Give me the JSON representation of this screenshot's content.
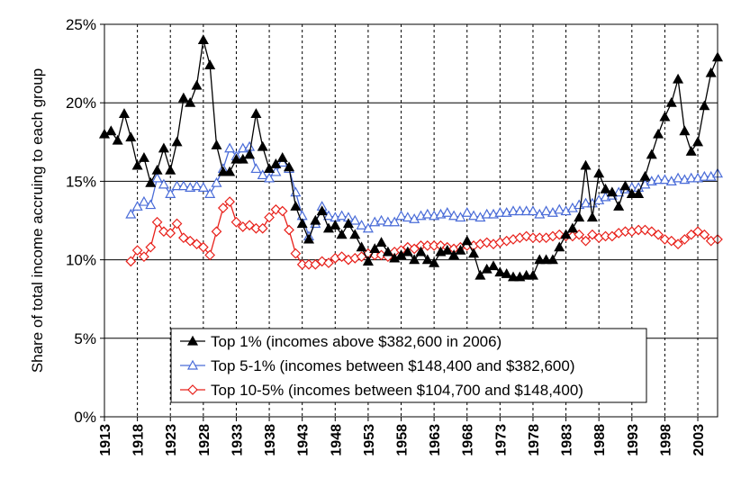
{
  "chart_data": {
    "type": "line",
    "title": "",
    "xlabel": "",
    "ylabel": "Share of total income accruing to each group",
    "xlim": [
      1913,
      2006
    ],
    "ylim": [
      0,
      25
    ],
    "y_ticks": [
      "0%",
      "5%",
      "10%",
      "15%",
      "20%",
      "25%"
    ],
    "y_tick_values": [
      0,
      5,
      10,
      15,
      20,
      25
    ],
    "x_tick_values": [
      1913,
      1918,
      1923,
      1928,
      1933,
      1938,
      1943,
      1948,
      1953,
      1958,
      1963,
      1968,
      1973,
      1978,
      1983,
      1988,
      1993,
      1998,
      2003
    ],
    "x_ticks": [
      "1913",
      "1918",
      "1923",
      "1928",
      "1933",
      "1938",
      "1943",
      "1948",
      "1953",
      "1958",
      "1963",
      "1968",
      "1973",
      "1978",
      "1983",
      "1988",
      "1993",
      "1998",
      "2003"
    ],
    "grid": "horizontal solid, vertical dashed",
    "legend_position": "bottom-center",
    "series": [
      {
        "name": "Top 1% (incomes above $382,600 in 2006)",
        "color": "#000000",
        "marker": "filled-triangle",
        "x": [
          1913,
          1914,
          1915,
          1916,
          1917,
          1918,
          1919,
          1920,
          1921,
          1922,
          1923,
          1924,
          1925,
          1926,
          1927,
          1928,
          1929,
          1930,
          1931,
          1932,
          1933,
          1934,
          1935,
          1936,
          1937,
          1938,
          1939,
          1940,
          1941,
          1942,
          1943,
          1944,
          1945,
          1946,
          1947,
          1948,
          1949,
          1950,
          1951,
          1952,
          1953,
          1954,
          1955,
          1956,
          1957,
          1958,
          1959,
          1960,
          1961,
          1962,
          1963,
          1964,
          1965,
          1966,
          1967,
          1968,
          1969,
          1970,
          1971,
          1972,
          1973,
          1974,
          1975,
          1976,
          1977,
          1978,
          1979,
          1980,
          1981,
          1982,
          1983,
          1984,
          1985,
          1986,
          1987,
          1988,
          1989,
          1990,
          1991,
          1992,
          1993,
          1994,
          1995,
          1996,
          1997,
          1998,
          1999,
          2000,
          2001,
          2002,
          2003,
          2004,
          2005,
          2006
        ],
        "values": [
          18.0,
          18.2,
          17.6,
          19.3,
          17.8,
          16.0,
          16.5,
          14.9,
          15.7,
          17.1,
          15.7,
          17.5,
          20.3,
          20.0,
          21.1,
          24.0,
          22.4,
          17.3,
          15.6,
          15.6,
          16.4,
          16.4,
          16.7,
          19.3,
          17.2,
          15.8,
          16.1,
          16.5,
          15.9,
          13.4,
          12.3,
          11.3,
          12.5,
          13.1,
          12.0,
          12.2,
          11.6,
          12.3,
          11.6,
          10.8,
          9.9,
          10.7,
          11.1,
          10.5,
          10.1,
          10.3,
          10.5,
          10.0,
          10.5,
          10.0,
          9.8,
          10.5,
          10.6,
          10.3,
          10.6,
          11.2,
          10.4,
          9.0,
          9.4,
          9.6,
          9.2,
          9.1,
          8.9,
          8.9,
          9.0,
          9.0,
          10.0,
          10.0,
          10.0,
          10.8,
          11.6,
          12.0,
          12.7,
          16.0,
          12.7,
          15.5,
          14.5,
          14.3,
          13.4,
          14.7,
          14.2,
          14.2,
          15.3,
          16.7,
          18.0,
          19.1,
          20.0,
          21.5,
          18.2,
          16.9,
          17.5,
          19.8,
          21.9,
          22.9
        ]
      },
      {
        "name": "Top 5-1% (incomes between $148,400 and $382,600)",
        "color": "#4a6cd8",
        "marker": "open-triangle",
        "x": [
          1917,
          1918,
          1919,
          1920,
          1921,
          1922,
          1923,
          1924,
          1925,
          1926,
          1927,
          1928,
          1929,
          1930,
          1931,
          1932,
          1933,
          1934,
          1935,
          1936,
          1937,
          1938,
          1939,
          1940,
          1941,
          1942,
          1943,
          1944,
          1945,
          1946,
          1947,
          1948,
          1949,
          1950,
          1951,
          1952,
          1953,
          1954,
          1955,
          1956,
          1957,
          1958,
          1959,
          1960,
          1961,
          1962,
          1963,
          1964,
          1965,
          1966,
          1967,
          1968,
          1969,
          1970,
          1971,
          1972,
          1973,
          1974,
          1975,
          1976,
          1977,
          1978,
          1979,
          1980,
          1981,
          1982,
          1983,
          1984,
          1985,
          1986,
          1987,
          1988,
          1989,
          1990,
          1991,
          1992,
          1993,
          1994,
          1995,
          1996,
          1997,
          1998,
          1999,
          2000,
          2001,
          2002,
          2003,
          2004,
          2005,
          2006
        ],
        "values": [
          12.9,
          13.4,
          13.7,
          13.5,
          15.2,
          14.8,
          14.2,
          14.7,
          14.7,
          14.6,
          14.7,
          14.6,
          14.2,
          14.9,
          15.8,
          17.1,
          16.6,
          17.1,
          17.2,
          15.8,
          15.4,
          15.2,
          15.6,
          16.2,
          15.8,
          14.3,
          12.8,
          11.5,
          12.3,
          13.4,
          12.8,
          12.7,
          12.8,
          12.7,
          12.5,
          12.2,
          12.0,
          12.4,
          12.5,
          12.4,
          12.4,
          12.8,
          12.7,
          12.6,
          12.8,
          12.9,
          12.8,
          12.9,
          13.0,
          12.8,
          12.7,
          13.0,
          12.8,
          12.7,
          12.9,
          12.9,
          13.0,
          13.0,
          13.1,
          13.1,
          13.1,
          13.1,
          12.9,
          13.1,
          13.0,
          13.2,
          13.1,
          13.3,
          13.5,
          13.6,
          13.6,
          13.8,
          14.0,
          14.1,
          14.3,
          14.5,
          14.6,
          14.6,
          14.8,
          15.0,
          15.1,
          15.1,
          15.0,
          15.2,
          15.1,
          15.2,
          15.2,
          15.3,
          15.3,
          15.5
        ]
      },
      {
        "name": "Top 10-5% (incomes between $104,700 and $148,400)",
        "color": "#e8201a",
        "marker": "open-diamond",
        "x": [
          1917,
          1918,
          1919,
          1920,
          1921,
          1922,
          1923,
          1924,
          1925,
          1926,
          1927,
          1928,
          1929,
          1930,
          1931,
          1932,
          1933,
          1934,
          1935,
          1936,
          1937,
          1938,
          1939,
          1940,
          1941,
          1942,
          1943,
          1944,
          1945,
          1946,
          1947,
          1948,
          1949,
          1950,
          1951,
          1952,
          1953,
          1954,
          1955,
          1956,
          1957,
          1958,
          1959,
          1960,
          1961,
          1962,
          1963,
          1964,
          1965,
          1966,
          1967,
          1968,
          1969,
          1970,
          1971,
          1972,
          1973,
          1974,
          1975,
          1976,
          1977,
          1978,
          1979,
          1980,
          1981,
          1982,
          1983,
          1984,
          1985,
          1986,
          1987,
          1988,
          1989,
          1990,
          1991,
          1992,
          1993,
          1994,
          1995,
          1996,
          1997,
          1998,
          1999,
          2000,
          2001,
          2002,
          2003,
          2004,
          2005,
          2006
        ],
        "values": [
          9.9,
          10.6,
          10.2,
          10.8,
          12.4,
          11.8,
          11.7,
          12.3,
          11.4,
          11.2,
          11.0,
          10.8,
          10.3,
          11.8,
          13.3,
          13.7,
          12.4,
          12.1,
          12.2,
          12.0,
          12.0,
          12.7,
          13.2,
          13.1,
          11.9,
          10.4,
          9.7,
          9.7,
          9.7,
          9.9,
          9.8,
          10.1,
          10.2,
          10.0,
          10.1,
          10.2,
          10.4,
          10.3,
          10.3,
          10.2,
          10.5,
          10.6,
          10.8,
          10.7,
          10.9,
          10.9,
          10.9,
          10.9,
          10.8,
          10.7,
          10.8,
          10.9,
          10.9,
          11.0,
          11.1,
          11.0,
          11.1,
          11.2,
          11.3,
          11.4,
          11.5,
          11.4,
          11.4,
          11.4,
          11.5,
          11.6,
          11.5,
          11.5,
          11.6,
          11.2,
          11.6,
          11.4,
          11.5,
          11.5,
          11.7,
          11.8,
          11.8,
          11.9,
          11.9,
          11.8,
          11.6,
          11.3,
          11.2,
          11.0,
          11.3,
          11.6,
          11.8,
          11.6,
          11.2,
          11.3
        ]
      }
    ]
  }
}
